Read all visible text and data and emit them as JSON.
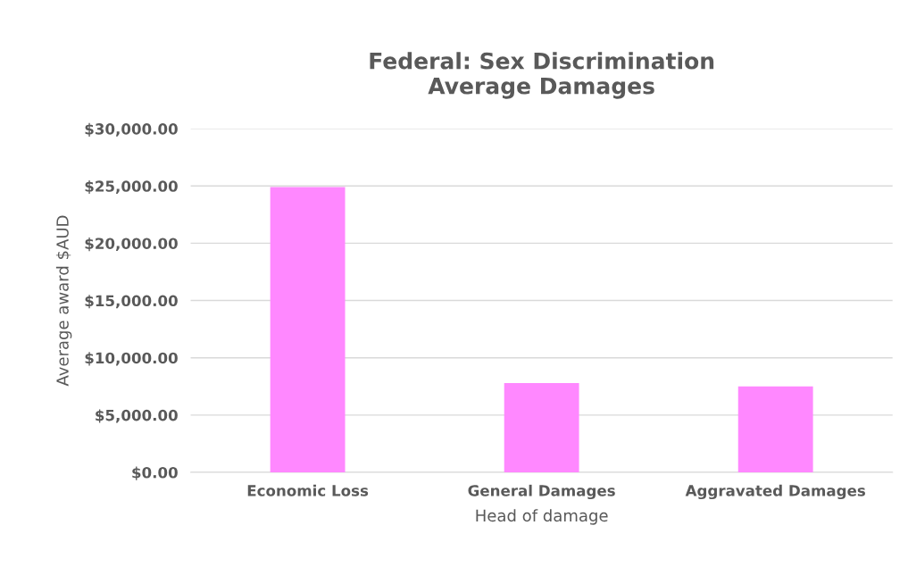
{
  "chart_data": {
    "type": "bar",
    "title": "Federal: Sex Discrimination\nAverage Damages",
    "xlabel": "Head of damage",
    "ylabel": "Average award $AUD",
    "categories": [
      "Economic Loss",
      "General Damages",
      "Aggravated Damages"
    ],
    "values": [
      24900,
      7800,
      7500
    ],
    "color": "#ff88ff",
    "ylim": [
      0,
      30000
    ],
    "yticks": [
      {
        "value": 0,
        "label": "$0.00"
      },
      {
        "value": 5000,
        "label": "$5,000.00"
      },
      {
        "value": 10000,
        "label": "$10,000.00"
      },
      {
        "value": 15000,
        "label": "$15,000.00"
      },
      {
        "value": 20000,
        "label": "$20,000.00"
      },
      {
        "value": 25000,
        "label": "$25,000.00"
      },
      {
        "value": 30000,
        "label": "$30,000.00"
      }
    ],
    "grid": "y"
  }
}
